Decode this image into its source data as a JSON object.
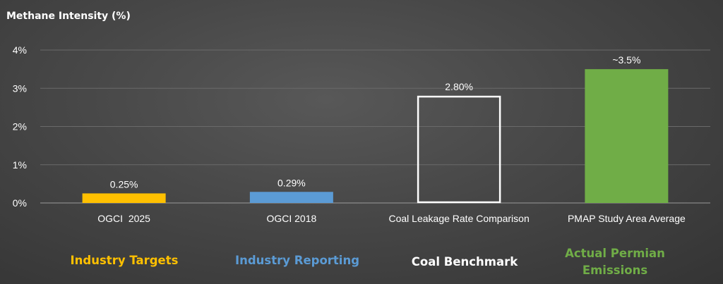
{
  "chart_data": {
    "type": "bar",
    "title": "",
    "ylabel": "Methane Intensity (%)",
    "xlabel": "",
    "ylim": [
      0,
      4
    ],
    "yticks": [
      0,
      1,
      2,
      3,
      4
    ],
    "ytick_labels": [
      "0%",
      "1%",
      "2%",
      "3%",
      "4%"
    ],
    "grid": true,
    "categories": [
      "OGCI  2025",
      "OGCI 2018",
      "Coal Leakage Rate Comparison",
      "PMAP Study Area Average"
    ],
    "values": [
      0.25,
      0.29,
      2.8,
      3.5
    ],
    "data_labels": [
      "0.25%",
      "0.29%",
      "2.80%",
      "~3.5%"
    ],
    "bar_styles": [
      {
        "fill": "#FFC000",
        "stroke": "none"
      },
      {
        "fill": "#5B9BD5",
        "stroke": "none"
      },
      {
        "fill": "none",
        "stroke": "#FFFFFF"
      },
      {
        "fill": "#70AD47",
        "stroke": "none"
      }
    ],
    "group_labels": [
      {
        "text": "Industry Targets",
        "color": "#FFC000"
      },
      {
        "text": "Industry Reporting",
        "color": "#5B9BD5"
      },
      {
        "text": "Coal Benchmark",
        "color": "#FFFFFF"
      },
      {
        "text": "Actual Permian Emissions",
        "color": "#70AD47"
      }
    ]
  }
}
